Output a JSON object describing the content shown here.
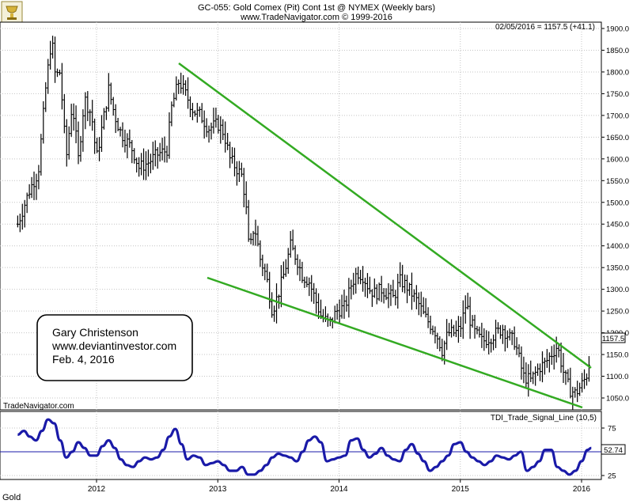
{
  "header": {
    "title": "GC-055:  Gold Comex (Pit) Cont 1st @ NYMEX  (Weekly bars)",
    "subtitle": "www.TradeNavigator.com © 1999-2016",
    "last_quote": "02/05/2016 = 1157.5 (+41.1)",
    "watermark": "TradeNavigator.com"
  },
  "annotation": {
    "line1": "Gary Christenson",
    "line2": "www.deviantinvestor.com",
    "line3": "Feb. 4, 2016"
  },
  "price_panel": {
    "label_box": "1157.5",
    "y_ticks": [
      "1900.0",
      "1850.0",
      "1800.0",
      "1750.0",
      "1700.0",
      "1650.0",
      "1600.0",
      "1550.0",
      "1500.0",
      "1450.0",
      "1400.0",
      "1350.0",
      "1300.0",
      "1250.0",
      "1200.0",
      "1150.0",
      "1100.0",
      "1050.0"
    ]
  },
  "indicator_panel": {
    "title": "TDI_Trade_Signal_Line (10,5)",
    "label_box": "52.74",
    "y_ticks": [
      "75",
      "25"
    ]
  },
  "x_axis": {
    "labels": [
      "2012",
      "2013",
      "2014",
      "2015",
      "2016"
    ]
  },
  "footer": {
    "symbol": "Gold"
  },
  "colors": {
    "bars": "#000000",
    "trendlines": "#33aa22",
    "indicator": "#1a1aa8",
    "grid": "#bcbcbc",
    "panel_bg": "#ffffff",
    "border": "#000000"
  },
  "chart_data": [
    {
      "type": "bar",
      "title": "GC-055:  Gold Comex (Pit) Cont 1st @ NYMEX  (Weekly bars)",
      "xlabel": "",
      "ylabel": "",
      "ylim": [
        1020,
        1920
      ],
      "xlim": [
        2011.35,
        2016.12
      ],
      "price_path": [
        [
          2011.35,
          1450
        ],
        [
          2011.45,
          1530
        ],
        [
          2011.52,
          1570
        ],
        [
          2011.58,
          1760
        ],
        [
          2011.63,
          1880
        ],
        [
          2011.66,
          1790
        ],
        [
          2011.7,
          1800
        ],
        [
          2011.75,
          1600
        ],
        [
          2011.8,
          1730
        ],
        [
          2011.85,
          1600
        ],
        [
          2011.9,
          1740
        ],
        [
          2011.96,
          1700
        ],
        [
          2012.0,
          1600
        ],
        [
          2012.05,
          1680
        ],
        [
          2012.1,
          1760
        ],
        [
          2012.15,
          1700
        ],
        [
          2012.2,
          1660
        ],
        [
          2012.3,
          1620
        ],
        [
          2012.35,
          1580
        ],
        [
          2012.42,
          1590
        ],
        [
          2012.5,
          1610
        ],
        [
          2012.58,
          1620
        ],
        [
          2012.62,
          1720
        ],
        [
          2012.68,
          1780
        ],
        [
          2012.75,
          1740
        ],
        [
          2012.8,
          1710
        ],
        [
          2012.86,
          1700
        ],
        [
          2012.92,
          1670
        ],
        [
          2013.0,
          1680
        ],
        [
          2013.05,
          1660
        ],
        [
          2013.1,
          1600
        ],
        [
          2013.15,
          1580
        ],
        [
          2013.2,
          1560
        ],
        [
          2013.23,
          1500
        ],
        [
          2013.26,
          1380
        ],
        [
          2013.3,
          1450
        ],
        [
          2013.35,
          1370
        ],
        [
          2013.4,
          1330
        ],
        [
          2013.45,
          1250
        ],
        [
          2013.5,
          1290
        ],
        [
          2013.55,
          1340
        ],
        [
          2013.6,
          1400
        ],
        [
          2013.65,
          1370
        ],
        [
          2013.7,
          1330
        ],
        [
          2013.75,
          1320
        ],
        [
          2013.8,
          1280
        ],
        [
          2013.85,
          1240
        ],
        [
          2013.92,
          1220
        ],
        [
          2013.98,
          1250
        ],
        [
          2014.05,
          1260
        ],
        [
          2014.1,
          1310
        ],
        [
          2014.15,
          1340
        ],
        [
          2014.2,
          1330
        ],
        [
          2014.25,
          1300
        ],
        [
          2014.3,
          1290
        ],
        [
          2014.35,
          1300
        ],
        [
          2014.4,
          1290
        ],
        [
          2014.45,
          1280
        ],
        [
          2014.5,
          1320
        ],
        [
          2014.55,
          1310
        ],
        [
          2014.6,
          1290
        ],
        [
          2014.65,
          1270
        ],
        [
          2014.7,
          1240
        ],
        [
          2014.75,
          1220
        ],
        [
          2014.8,
          1200
        ],
        [
          2014.85,
          1160
        ],
        [
          2014.9,
          1200
        ],
        [
          2014.96,
          1200
        ],
        [
          2015.0,
          1210
        ],
        [
          2015.05,
          1270
        ],
        [
          2015.08,
          1230
        ],
        [
          2015.12,
          1200
        ],
        [
          2015.18,
          1180
        ],
        [
          2015.25,
          1190
        ],
        [
          2015.3,
          1200
        ],
        [
          2015.35,
          1210
        ],
        [
          2015.4,
          1190
        ],
        [
          2015.45,
          1180
        ],
        [
          2015.52,
          1100
        ],
        [
          2015.58,
          1090
        ],
        [
          2015.65,
          1120
        ],
        [
          2015.7,
          1130
        ],
        [
          2015.75,
          1150
        ],
        [
          2015.8,
          1170
        ],
        [
          2015.85,
          1110
        ],
        [
          2015.9,
          1070
        ],
        [
          2015.95,
          1060
        ],
        [
          2016.0,
          1080
        ],
        [
          2016.04,
          1100
        ],
        [
          2016.08,
          1160
        ]
      ],
      "last_close": 1157.5,
      "change": 41.1
    },
    {
      "type": "line",
      "title": "TDI_Trade_Signal_Line (10,5)",
      "ylim": [
        15,
        95
      ],
      "reference_level": 50,
      "last_value": 52.74,
      "series": [
        {
          "x": [
            2011.35,
            2011.4,
            2011.45,
            2011.5,
            2011.55,
            2011.6,
            2011.65,
            2011.7,
            2011.75,
            2011.8,
            2011.85,
            2011.9,
            2011.95,
            2012.0,
            2012.05,
            2012.1,
            2012.15,
            2012.2,
            2012.25,
            2012.3,
            2012.35,
            2012.4,
            2012.45,
            2012.5,
            2012.55,
            2012.6,
            2012.65,
            2012.7,
            2012.75,
            2012.8,
            2012.85,
            2012.9,
            2012.95,
            2013.0,
            2013.05,
            2013.1,
            2013.15,
            2013.2,
            2013.25,
            2013.3,
            2013.35,
            2013.4,
            2013.45,
            2013.5,
            2013.55,
            2013.6,
            2013.65,
            2013.7,
            2013.75,
            2013.8,
            2013.85,
            2013.9,
            2013.95,
            2014.0,
            2014.05,
            2014.1,
            2014.15,
            2014.2,
            2014.25,
            2014.3,
            2014.35,
            2014.4,
            2014.45,
            2014.5,
            2014.55,
            2014.6,
            2014.65,
            2014.7,
            2014.75,
            2014.8,
            2014.85,
            2014.9,
            2014.95,
            2015.0,
            2015.05,
            2015.1,
            2015.15,
            2015.2,
            2015.25,
            2015.3,
            2015.35,
            2015.4,
            2015.45,
            2015.5,
            2015.55,
            2015.6,
            2015.65,
            2015.7,
            2015.75,
            2015.8,
            2015.85,
            2015.9,
            2015.95,
            2016.0,
            2016.05,
            2016.08
          ],
          "values": [
            68,
            72,
            66,
            62,
            72,
            84,
            80,
            62,
            44,
            50,
            60,
            54,
            46,
            46,
            56,
            62,
            54,
            42,
            36,
            34,
            40,
            44,
            42,
            44,
            52,
            66,
            74,
            58,
            42,
            46,
            44,
            36,
            38,
            40,
            36,
            30,
            30,
            34,
            26,
            26,
            30,
            36,
            44,
            48,
            46,
            44,
            40,
            50,
            62,
            66,
            60,
            40,
            42,
            44,
            46,
            62,
            64,
            52,
            44,
            48,
            54,
            46,
            42,
            40,
            52,
            58,
            48,
            40,
            30,
            34,
            40,
            46,
            58,
            60,
            50,
            44,
            40,
            36,
            40,
            46,
            44,
            42,
            46,
            50,
            30,
            34,
            40,
            52,
            52,
            34,
            30,
            26,
            30,
            40,
            52,
            54
          ]
        }
      ]
    }
  ]
}
